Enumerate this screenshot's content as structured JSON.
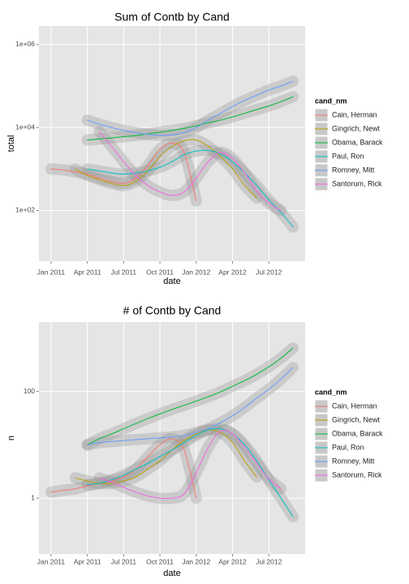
{
  "chart_data": [
    {
      "type": "line",
      "title": "Sum of Contb by Cand",
      "xlabel": "date",
      "ylabel": "total",
      "yscale": "log",
      "grid": true,
      "legend": "right",
      "legend_title": "cand_nm",
      "x": [
        "2011-01",
        "2011-02",
        "2011-03",
        "2011-04",
        "2011-05",
        "2011-06",
        "2011-07",
        "2011-08",
        "2011-09",
        "2011-10",
        "2011-11",
        "2011-12",
        "2012-01",
        "2012-02",
        "2012-03",
        "2012-04",
        "2012-05",
        "2012-06",
        "2012-07",
        "2012-08",
        "2012-09"
      ],
      "xlim": [
        "2010-12",
        "2012-10"
      ],
      "xticks": [
        {
          "value": "2011-01",
          "label": "Jan 2011"
        },
        {
          "value": "2011-04",
          "label": "Apr 2011"
        },
        {
          "value": "2011-07",
          "label": "Jul 2011"
        },
        {
          "value": "2011-10",
          "label": "Oct 2011"
        },
        {
          "value": "2012-01",
          "label": "Jan 2012"
        },
        {
          "value": "2012-04",
          "label": "Apr 2012"
        },
        {
          "value": "2012-07",
          "label": "Jul 2012"
        }
      ],
      "ylim": [
        6,
        2800000
      ],
      "yticks": [
        {
          "value": 100,
          "label": "1e+02"
        },
        {
          "value": 10000,
          "label": "1e+04"
        },
        {
          "value": 1000000,
          "label": "1e+06"
        }
      ],
      "series": [
        {
          "name": "Cain, Herman",
          "color": "#F8766D",
          "values": [
            1000,
            950,
            850,
            750,
            600,
            500,
            450,
            600,
            1200,
            3000,
            4200,
            2500,
            170,
            null,
            null,
            null,
            null,
            null,
            null,
            null,
            null
          ]
        },
        {
          "name": "Gingrich, Newt",
          "color": "#B79F00",
          "values": [
            null,
            null,
            1000,
            700,
            550,
            450,
            400,
            500,
            900,
            2000,
            3500,
            4800,
            5000,
            3500,
            2000,
            1000,
            400,
            200,
            null,
            null,
            null
          ]
        },
        {
          "name": "Obama, Barack",
          "color": "#00BA38",
          "values": [
            null,
            null,
            null,
            5000,
            5300,
            5600,
            6000,
            6400,
            7000,
            7700,
            8500,
            9500,
            11000,
            13000,
            15000,
            18000,
            22000,
            27000,
            33000,
            42000,
            55000
          ]
        },
        {
          "name": "Paul, Ron",
          "color": "#00BFC4",
          "values": [
            null,
            null,
            null,
            1000,
            900,
            800,
            750,
            800,
            900,
            1100,
            1500,
            2200,
            2700,
            2800,
            2300,
            1500,
            800,
            400,
            180,
            90,
            40
          ]
        },
        {
          "name": "Romney, Mitt",
          "color": "#619CFF",
          "values": [
            null,
            null,
            null,
            15000,
            12000,
            10000,
            8500,
            7500,
            6800,
            6500,
            6600,
            7500,
            10000,
            15000,
            22000,
            32000,
            45000,
            60000,
            80000,
            100000,
            130000
          ]
        },
        {
          "name": "Santorum, Rick",
          "color": "#F564E3",
          "values": [
            null,
            null,
            null,
            null,
            8000,
            3500,
            1500,
            700,
            400,
            280,
            230,
            280,
            600,
            1500,
            2500,
            1800,
            800,
            300,
            150,
            100,
            null
          ]
        }
      ]
    },
    {
      "type": "line",
      "title": "# of Contb by Cand",
      "xlabel": "date",
      "ylabel": "n",
      "yscale": "log",
      "grid": true,
      "legend": "right",
      "legend_title": "cand_nm",
      "x": [
        "2011-01",
        "2011-02",
        "2011-03",
        "2011-04",
        "2011-05",
        "2011-06",
        "2011-07",
        "2011-08",
        "2011-09",
        "2011-10",
        "2011-11",
        "2011-12",
        "2012-01",
        "2012-02",
        "2012-03",
        "2012-04",
        "2012-05",
        "2012-06",
        "2012-07",
        "2012-08",
        "2012-09"
      ],
      "xlim": [
        "2010-12",
        "2012-10"
      ],
      "xticks": [
        {
          "value": "2011-01",
          "label": "Jan 2011"
        },
        {
          "value": "2011-04",
          "label": "Apr 2011"
        },
        {
          "value": "2011-07",
          "label": "Jul 2011"
        },
        {
          "value": "2011-10",
          "label": "Oct 2011"
        },
        {
          "value": "2012-01",
          "label": "Jan 2012"
        },
        {
          "value": "2012-04",
          "label": "Apr 2012"
        },
        {
          "value": "2012-07",
          "label": "Jul 2012"
        }
      ],
      "ylim": [
        0.09,
        2000
      ],
      "yticks": [
        1,
        100
      ],
      "series": [
        {
          "name": "Cain, Herman",
          "color": "#F8766D",
          "values": [
            1.3,
            1.4,
            1.5,
            1.7,
            1.9,
            2.1,
            2.5,
            3.5,
            6,
            10,
            13,
            8,
            1,
            null,
            null,
            null,
            null,
            null,
            null,
            null,
            null
          ]
        },
        {
          "name": "Gingrich, Newt",
          "color": "#B79F00",
          "values": [
            null,
            null,
            2.4,
            2.1,
            1.9,
            1.9,
            2.1,
            2.5,
            3.5,
            5,
            8,
            12,
            16,
            19,
            17,
            11,
            5,
            2.5,
            null,
            null,
            null
          ]
        },
        {
          "name": "Obama, Barack",
          "color": "#00BA38",
          "values": [
            null,
            null,
            null,
            10,
            13,
            16,
            20,
            25,
            31,
            38,
            46,
            55,
            66,
            80,
            98,
            125,
            160,
            210,
            290,
            420,
            650
          ]
        },
        {
          "name": "Paul, Ron",
          "color": "#00BFC4",
          "values": [
            null,
            null,
            null,
            1.8,
            1.9,
            2.2,
            2.7,
            3.5,
            4.5,
            6,
            8,
            11,
            15,
            19,
            20,
            16,
            10,
            5,
            2.2,
            1,
            0.45
          ]
        },
        {
          "name": "Romney, Mitt",
          "color": "#619CFF",
          "values": [
            null,
            null,
            null,
            10,
            11,
            11.5,
            12,
            12.5,
            13,
            13.5,
            14,
            15,
            17,
            20,
            26,
            35,
            50,
            75,
            110,
            170,
            280
          ]
        },
        {
          "name": "Santorum, Rick",
          "color": "#F564E3",
          "values": [
            null,
            null,
            null,
            null,
            2.4,
            2,
            1.6,
            1.3,
            1.1,
            1.0,
            1.0,
            1.2,
            3,
            9,
            18,
            16,
            9,
            4.5,
            2.3,
            1.5,
            null
          ]
        }
      ]
    }
  ]
}
